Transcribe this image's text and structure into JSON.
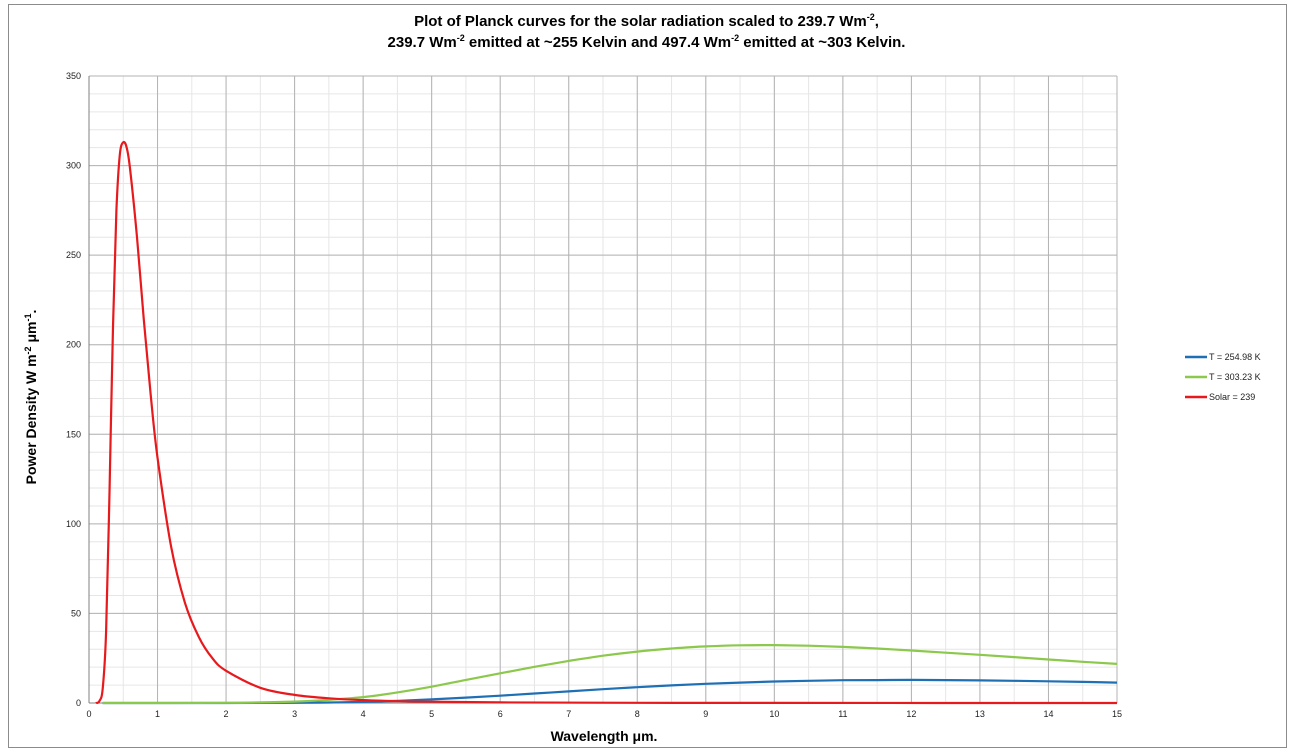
{
  "chart_data": {
    "type": "line",
    "title_line_1": "Plot of  Planck curves for the solar radiation scaled to 239.7 Wm",
    "title_line_1_sup": "-2",
    "title_line_1_end": ",",
    "title_line_2_a": "239.7 Wm",
    "title_line_2_sup_a": "-2",
    "title_line_2_b": " emitted at ~255 Kelvin and 497.4 Wm",
    "title_line_2_sup_b": "-2",
    "title_line_2_c": " emitted at ~303 Kelvin.",
    "xlabel": "Wavelength μm.",
    "ylabel": "Power Density W m",
    "ylabel_sup_1": "-2",
    "ylabel_mid": "  μm",
    "ylabel_sup_2": "-1",
    "ylabel_end": ".",
    "xlim": [
      0,
      15
    ],
    "ylim": [
      0,
      350
    ],
    "x_ticks": [
      0,
      1,
      2,
      3,
      4,
      5,
      6,
      7,
      8,
      9,
      10,
      11,
      12,
      13,
      14,
      15
    ],
    "y_ticks": [
      0,
      50,
      100,
      150,
      200,
      250,
      300,
      350
    ],
    "x_minor_step": 0.5,
    "y_minor_step": 10,
    "grid": true,
    "legend_position": "right",
    "series": [
      {
        "name": "T = 254.98 K",
        "color": "#1f6fb5",
        "x": [
          0.2,
          2.0,
          3.0,
          3.5,
          4.0,
          4.5,
          5.0,
          5.5,
          6.0,
          6.5,
          7.0,
          7.5,
          8.0,
          8.5,
          9.0,
          9.5,
          10.0,
          10.5,
          11.0,
          11.5,
          12.0,
          12.5,
          13.0,
          13.5,
          14.0,
          14.5,
          15.0
        ],
        "y": [
          0,
          0,
          0.1,
          0.3,
          0.6,
          1.2,
          2.0,
          3.0,
          4.1,
          5.3,
          6.5,
          7.7,
          8.8,
          9.8,
          10.7,
          11.4,
          12.0,
          12.4,
          12.7,
          12.8,
          12.9,
          12.8,
          12.6,
          12.4,
          12.1,
          11.8,
          11.4
        ]
      },
      {
        "name": "T = 303.23 K",
        "color": "#8cc84b",
        "x": [
          0.2,
          2.0,
          3.0,
          3.5,
          4.0,
          4.5,
          5.0,
          5.5,
          6.0,
          6.5,
          7.0,
          7.5,
          8.0,
          8.5,
          9.0,
          9.5,
          10.0,
          10.5,
          11.0,
          11.5,
          12.0,
          12.5,
          13.0,
          13.5,
          14.0,
          14.5,
          15.0
        ],
        "y": [
          0,
          0.1,
          0.8,
          1.8,
          3.3,
          5.9,
          9.1,
          12.9,
          16.6,
          20.2,
          23.5,
          26.4,
          28.7,
          30.4,
          31.6,
          32.2,
          32.3,
          32.0,
          31.3,
          30.4,
          29.3,
          28.1,
          26.9,
          25.6,
          24.3,
          23.0,
          21.8
        ]
      },
      {
        "name": "Solar = 239",
        "color": "#e8191c",
        "x": [
          0.1,
          0.15,
          0.2,
          0.25,
          0.3,
          0.35,
          0.4,
          0.45,
          0.5,
          0.55,
          0.6,
          0.7,
          0.8,
          0.9,
          1.0,
          1.2,
          1.4,
          1.6,
          1.8,
          2.0,
          2.5,
          3.0,
          3.5,
          4.0,
          4.5,
          5.0,
          6.0,
          8.0,
          10.0,
          15.0
        ],
        "y": [
          0,
          1,
          8,
          40,
          120,
          210,
          275,
          306,
          313,
          310,
          298,
          260,
          214,
          172,
          137,
          87,
          56,
          37,
          25,
          18,
          8.5,
          4.5,
          2.6,
          1.6,
          1.0,
          0.7,
          0.35,
          0.1,
          0.04,
          0
        ]
      }
    ]
  }
}
